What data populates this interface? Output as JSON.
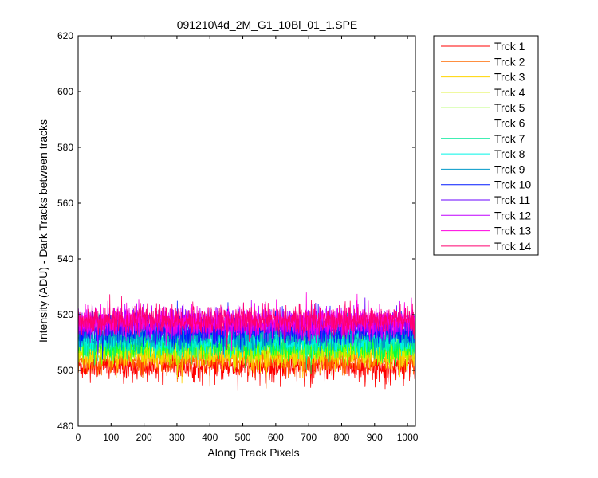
{
  "chart_data": {
    "type": "line",
    "title": "091210\\4d_2M_G1_10Bl_01_1.SPE",
    "xlabel": "Along Track Pixels",
    "ylabel": "Intensity (ADU) - Dark Tracks between tracks",
    "xlim": [
      0,
      1024
    ],
    "ylim": [
      480,
      620
    ],
    "xticks": [
      0,
      100,
      200,
      300,
      400,
      500,
      600,
      700,
      800,
      900,
      1000
    ],
    "yticks": [
      480,
      500,
      520,
      540,
      560,
      580,
      600,
      620
    ],
    "grid": false,
    "legend_position": "outside-top-right",
    "noise": "high-frequency per-pixel noise, roughly +/-6 ADU around each mean level",
    "series": [
      {
        "name": "Trck 1",
        "color": "#ff0000",
        "mean": 501.5
      },
      {
        "name": "Trck 2",
        "color": "#ff6a00",
        "mean": 504.0
      },
      {
        "name": "Trck 3",
        "color": "#ffd400",
        "mean": 506.0
      },
      {
        "name": "Trck 4",
        "color": "#d8ef00",
        "mean": 507.5
      },
      {
        "name": "Trck 5",
        "color": "#80ff00",
        "mean": 508.5
      },
      {
        "name": "Trck 6",
        "color": "#00ff3c",
        "mean": 509.5
      },
      {
        "name": "Trck 7",
        "color": "#00e89a",
        "mean": 510.5
      },
      {
        "name": "Trck 8",
        "color": "#00f5e6",
        "mean": 511.0
      },
      {
        "name": "Trck 9",
        "color": "#0098c8",
        "mean": 512.5
      },
      {
        "name": "Trck 10",
        "color": "#0018ff",
        "mean": 514.5
      },
      {
        "name": "Trck 11",
        "color": "#6a00ff",
        "mean": 516.0
      },
      {
        "name": "Trck 12",
        "color": "#c000ff",
        "mean": 517.0
      },
      {
        "name": "Trck 13",
        "color": "#ff00e0",
        "mean": 517.5
      },
      {
        "name": "Trck 14",
        "color": "#ff0070",
        "mean": 518.0
      }
    ]
  }
}
